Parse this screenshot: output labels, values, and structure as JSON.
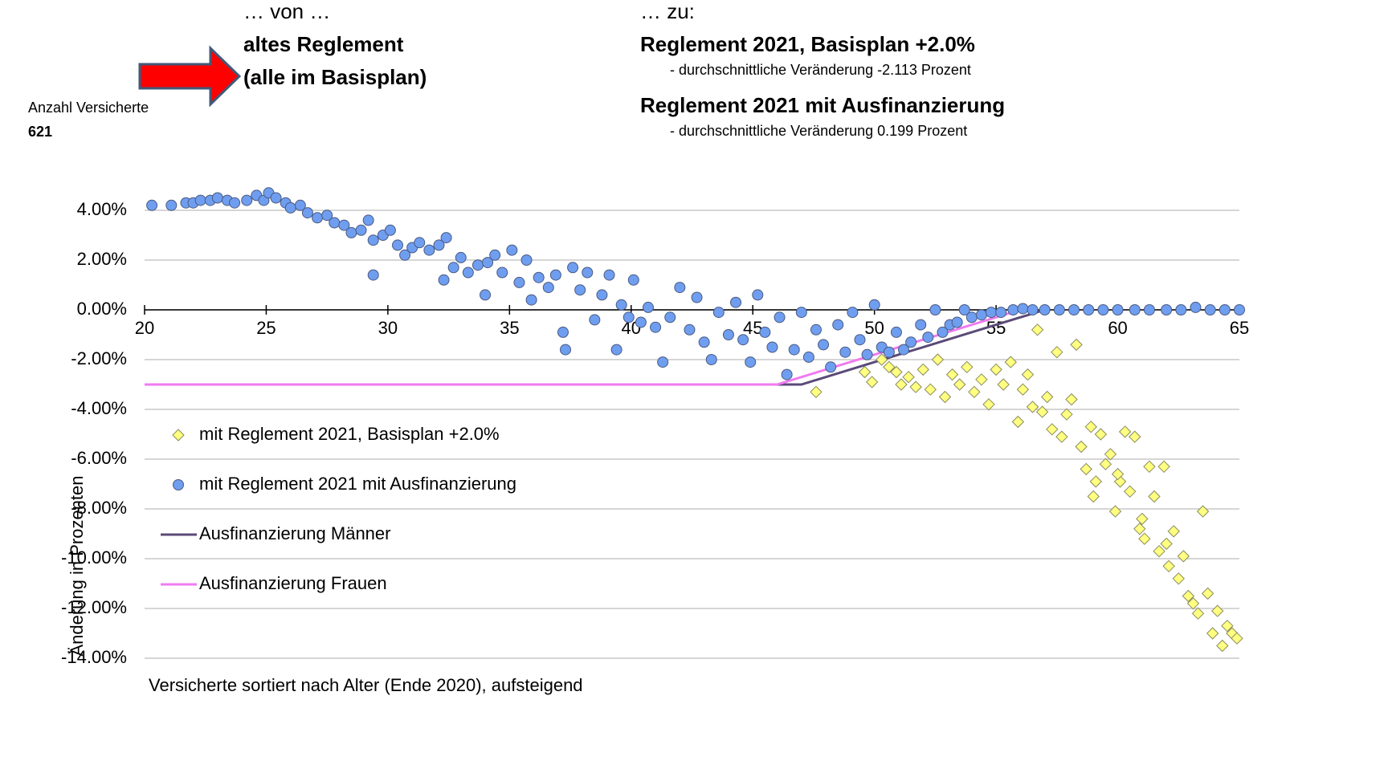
{
  "header": {
    "von": "… von …",
    "von_title_1": "altes Reglement",
    "von_title_2": "(alle im Basisplan)",
    "zu": "… zu:",
    "zu_title_1": "Reglement 2021, Basisplan +2.0%",
    "zu_note_1": "- durchschnittliche Veränderung -2.113 Prozent",
    "zu_title_2": "Reglement 2021 mit Ausfinanzierung",
    "zu_note_2": "- durchschnittliche Veränderung 0.199 Prozent",
    "count_label": "Anzahl Versicherte",
    "count": "621"
  },
  "chart_data": {
    "type": "scatter",
    "x_label": "Versicherte sortiert nach Alter (Ende 2020), aufsteigend",
    "y_label": "Änderung in Prozenten",
    "xlim": [
      20,
      65
    ],
    "xticks": [
      20,
      25,
      30,
      35,
      40,
      45,
      50,
      55,
      60,
      65
    ],
    "ylim": [
      -14,
      5
    ],
    "yticks": [
      {
        "value": 4,
        "label": "4.00%"
      },
      {
        "value": 2,
        "label": "2.00%"
      },
      {
        "value": 0,
        "label": "0.00%"
      },
      {
        "value": -2,
        "label": "-2.00%"
      },
      {
        "value": -4,
        "label": "-4.00%"
      },
      {
        "value": -6,
        "label": "-6.00%"
      },
      {
        "value": -8,
        "label": "-8.00%"
      },
      {
        "value": -10,
        "label": "-10.00%"
      },
      {
        "value": -12,
        "label": "-12.00%"
      },
      {
        "value": -14,
        "label": "-14.00%"
      }
    ],
    "grid": true,
    "legend": "left",
    "series": [
      {
        "name": "Ausfinanzierung Männer",
        "kind": "line",
        "color": "#5a4a78",
        "x": [
          20,
          47,
          57
        ],
        "values": [
          -3,
          -3,
          0
        ]
      },
      {
        "name": "Ausfinanzierung Frauen",
        "kind": "line",
        "color": "#f07af0",
        "x": [
          20,
          46,
          56
        ],
        "values": [
          -3,
          -3,
          0
        ]
      },
      {
        "name": "mit Reglement 2021, Basisplan +2.0%",
        "kind": "diamond",
        "color": "#ffff80",
        "x": [
          47.6,
          49.6,
          49.9,
          50.3,
          50.6,
          50.9,
          51.1,
          51.4,
          51.7,
          52.0,
          52.3,
          52.6,
          52.9,
          53.2,
          53.5,
          53.8,
          54.1,
          54.4,
          54.7,
          55.0,
          55.3,
          55.6,
          55.9,
          56.1,
          56.3,
          56.5,
          56.7,
          56.9,
          57.1,
          57.3,
          57.5,
          57.7,
          57.9,
          58.1,
          58.3,
          58.5,
          58.7,
          58.9,
          59.1,
          59.3,
          59.5,
          59.7,
          59.9,
          60.1,
          60.3,
          60.5,
          60.7,
          60.9,
          61.1,
          61.3,
          61.5,
          61.7,
          61.9,
          62.1,
          62.3,
          62.5,
          62.7,
          62.9,
          63.1,
          63.3,
          63.5,
          63.7,
          63.9,
          64.1,
          64.3,
          64.5,
          64.7,
          64.9,
          62.0,
          61.0,
          59.0,
          60.0
        ],
        "values": [
          -3.3,
          -2.5,
          -2.9,
          -2.0,
          -2.3,
          -2.5,
          -3.0,
          -2.7,
          -3.1,
          -2.4,
          -3.2,
          -2.0,
          -3.5,
          -2.6,
          -3.0,
          -2.3,
          -3.3,
          -2.8,
          -3.8,
          -2.4,
          -3.0,
          -2.1,
          -4.5,
          -3.2,
          -2.6,
          -3.9,
          -0.8,
          -4.1,
          -3.5,
          -4.8,
          -1.7,
          -5.1,
          -4.2,
          -3.6,
          -1.4,
          -5.5,
          -6.4,
          -4.7,
          -6.9,
          -5.0,
          -6.2,
          -5.8,
          -8.1,
          -6.9,
          -4.9,
          -7.3,
          -5.1,
          -8.8,
          -9.2,
          -6.3,
          -7.5,
          -9.7,
          -6.3,
          -10.3,
          -8.9,
          -10.8,
          -9.9,
          -11.5,
          -11.8,
          -12.2,
          -8.1,
          -11.4,
          -13.0,
          -12.1,
          -13.5,
          -12.7,
          -13.0,
          -13.2,
          -9.4,
          -8.4,
          -7.5,
          -6.6
        ]
      },
      {
        "name": "mit Reglement 2021 mit Ausfinanzierung",
        "kind": "circle",
        "color": "#6f9ef0",
        "x": [
          20.3,
          21.1,
          21.7,
          22.0,
          22.3,
          22.7,
          23.0,
          23.4,
          23.7,
          24.2,
          24.6,
          24.9,
          25.1,
          25.4,
          25.8,
          26.0,
          26.4,
          26.7,
          27.1,
          27.5,
          27.8,
          28.2,
          28.5,
          28.9,
          29.2,
          29.4,
          29.4,
          29.8,
          30.1,
          30.4,
          30.7,
          31.0,
          31.3,
          31.7,
          32.1,
          32.4,
          32.3,
          32.7,
          33.0,
          33.3,
          33.7,
          34.0,
          34.1,
          34.4,
          34.7,
          35.1,
          35.4,
          35.7,
          35.9,
          36.2,
          36.6,
          36.9,
          37.2,
          37.3,
          37.6,
          37.9,
          38.2,
          38.5,
          38.8,
          39.1,
          39.4,
          39.6,
          39.9,
          40.1,
          40.4,
          40.7,
          41.0,
          41.3,
          41.6,
          42.0,
          42.4,
          42.7,
          43.0,
          43.3,
          43.6,
          44.0,
          44.3,
          44.6,
          44.9,
          45.2,
          45.5,
          45.8,
          46.1,
          46.4,
          46.7,
          47.0,
          47.3,
          47.6,
          47.9,
          48.2,
          48.5,
          48.8,
          49.1,
          49.4,
          49.7,
          50.0,
          50.3,
          50.6,
          50.9,
          51.2,
          51.5,
          51.9,
          52.2,
          52.5,
          52.8,
          53.1,
          53.4,
          53.7,
          54.0,
          54.4,
          54.8,
          55.2,
          55.7,
          56.1,
          56.5,
          57.0,
          57.6,
          58.2,
          58.8,
          59.4,
          60.0,
          60.7,
          61.3,
          62.0,
          62.6,
          63.2,
          63.8,
          64.4,
          65.0
        ],
        "values": [
          4.2,
          4.2,
          4.3,
          4.3,
          4.4,
          4.4,
          4.5,
          4.4,
          4.3,
          4.4,
          4.6,
          4.4,
          4.7,
          4.5,
          4.3,
          4.1,
          4.2,
          3.9,
          3.7,
          3.8,
          3.5,
          3.4,
          3.1,
          3.2,
          3.6,
          2.8,
          1.4,
          3.0,
          3.2,
          2.6,
          2.2,
          2.5,
          2.7,
          2.4,
          2.6,
          2.9,
          1.2,
          1.7,
          2.1,
          1.5,
          1.8,
          0.6,
          1.9,
          2.2,
          1.5,
          2.4,
          1.1,
          2.0,
          0.4,
          1.3,
          0.9,
          1.4,
          -0.9,
          -1.6,
          1.7,
          0.8,
          1.5,
          -0.4,
          0.6,
          1.4,
          -1.6,
          0.2,
          -0.3,
          1.2,
          -0.5,
          0.1,
          -0.7,
          -2.1,
          -0.3,
          0.9,
          -0.8,
          0.5,
          -1.3,
          -2.0,
          -0.1,
          -1.0,
          0.3,
          -1.2,
          -2.1,
          0.6,
          -0.9,
          -1.5,
          -0.3,
          -2.6,
          -1.6,
          -0.1,
          -1.9,
          -0.8,
          -1.4,
          -2.3,
          -0.6,
          -1.7,
          -0.1,
          -1.2,
          -1.8,
          0.2,
          -1.5,
          -1.7,
          -0.9,
          -1.6,
          -1.3,
          -0.6,
          -1.1,
          0.0,
          -0.9,
          -0.6,
          -0.5,
          0.0,
          -0.3,
          -0.2,
          -0.1,
          -0.1,
          0.0,
          0.05,
          0.0,
          0.0,
          0.0,
          0.0,
          0.0,
          0.0,
          0.0,
          0.0,
          0.0,
          0.0,
          0.0,
          0.1,
          0.0,
          0.0,
          0.0
        ]
      }
    ]
  }
}
